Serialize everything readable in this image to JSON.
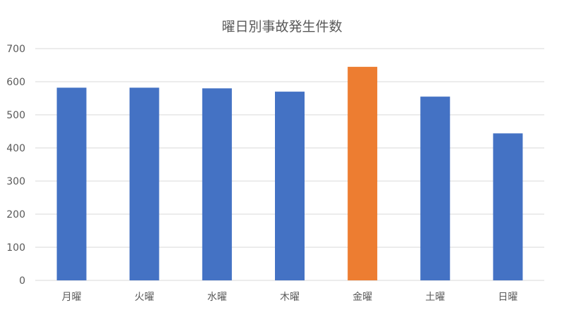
{
  "chart_data": {
    "type": "bar",
    "title": "曜日別事故発生件数",
    "xlabel": "",
    "ylabel": "",
    "categories": [
      "月曜",
      "火曜",
      "水曜",
      "木曜",
      "金曜",
      "土曜",
      "日曜"
    ],
    "values": [
      582,
      582,
      580,
      570,
      645,
      555,
      444
    ],
    "ylim": [
      0,
      700
    ],
    "yticks": [
      0,
      100,
      200,
      300,
      400,
      500,
      600,
      700
    ],
    "grid": "horizontal",
    "legend": "none",
    "colors": {
      "default": "#4472C4",
      "highlight": "#ED7D31",
      "highlight_category": "金曜"
    }
  }
}
